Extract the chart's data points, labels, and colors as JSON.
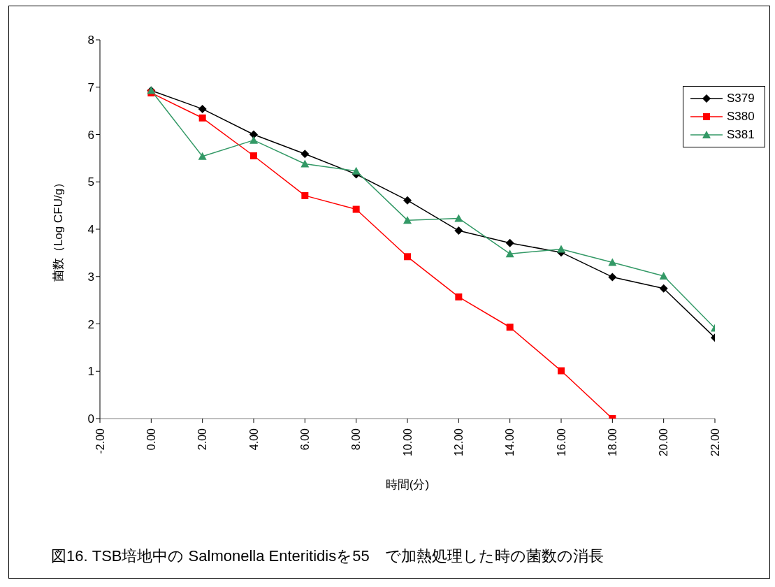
{
  "chart_data": {
    "type": "line",
    "title": "図16. TSB培地中の Salmonella Enteritidisを55　で加熱処理した時の菌数の消長",
    "xlabel": "時間(分)",
    "ylabel": "菌数（Log CFU/g）",
    "x": [
      0,
      2,
      4,
      6,
      8,
      10,
      12,
      14,
      16,
      18,
      20,
      22
    ],
    "xlim": [
      -2,
      22
    ],
    "xticks": [
      {
        "value": -2,
        "label": "-2.00"
      },
      {
        "value": 0,
        "label": "0.00"
      },
      {
        "value": 2,
        "label": "2.00"
      },
      {
        "value": 4,
        "label": "4.00"
      },
      {
        "value": 6,
        "label": "6.00"
      },
      {
        "value": 8,
        "label": "8.00"
      },
      {
        "value": 10,
        "label": "10.00"
      },
      {
        "value": 12,
        "label": "12.00"
      },
      {
        "value": 14,
        "label": "14.00"
      },
      {
        "value": 16,
        "label": "16.00"
      },
      {
        "value": 18,
        "label": "18.00"
      },
      {
        "value": 20,
        "label": "20.00"
      },
      {
        "value": 22,
        "label": "22.00"
      }
    ],
    "ylim": [
      0,
      8
    ],
    "yticks": [
      0,
      1,
      2,
      3,
      4,
      5,
      6,
      7,
      8
    ],
    "grid": false,
    "legend": "right",
    "series": [
      {
        "name": "S379",
        "color": "#000000",
        "marker": "diamond",
        "values": [
          6.93,
          6.54,
          6.0,
          5.59,
          5.16,
          4.61,
          3.97,
          3.71,
          3.51,
          2.99,
          2.75,
          1.71
        ]
      },
      {
        "name": "S380",
        "color": "#ff0000",
        "marker": "square",
        "values": [
          6.88,
          6.35,
          5.55,
          4.71,
          4.42,
          3.42,
          2.57,
          1.93,
          1.01,
          0.0,
          null,
          null
        ]
      },
      {
        "name": "S381",
        "color": "#339966",
        "marker": "triangle",
        "values": [
          6.93,
          5.54,
          5.88,
          5.38,
          5.23,
          4.19,
          4.23,
          3.48,
          3.58,
          3.3,
          3.01,
          1.91
        ]
      }
    ]
  }
}
